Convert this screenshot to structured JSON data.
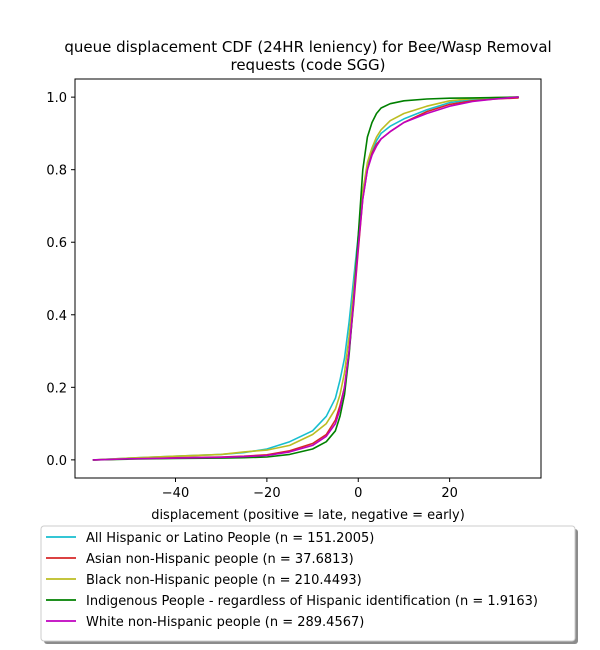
{
  "chart_data": {
    "type": "line",
    "title_lines": [
      "queue displacement CDF (24HR leniency) for Bee/Wasp Removal",
      "requests (code SGG)"
    ],
    "xlabel": "displacement (positive = late, negative = early)",
    "ylabel": "",
    "xlim": [
      -62,
      40
    ],
    "ylim": [
      -0.05,
      1.05
    ],
    "xticks": [
      -40,
      -20,
      0,
      20
    ],
    "xtick_labels": [
      "−40",
      "−20",
      "0",
      "20"
    ],
    "yticks": [
      0.0,
      0.2,
      0.4,
      0.6,
      0.8,
      1.0
    ],
    "ytick_labels": [
      "0.0",
      "0.2",
      "0.4",
      "0.6",
      "0.8",
      "1.0"
    ],
    "grid": false,
    "legend_position": "below plot",
    "series": [
      {
        "name": "All Hispanic or Latino People (n = 151.2005)",
        "color": "#17becf",
        "x": [
          -58,
          -50,
          -40,
          -30,
          -25,
          -20,
          -15,
          -10,
          -7,
          -5,
          -4,
          -3,
          -2,
          -1,
          0,
          1,
          2,
          3,
          4,
          5,
          7,
          10,
          15,
          20,
          25,
          30,
          35
        ],
        "y": [
          0.0,
          0.005,
          0.01,
          0.015,
          0.02,
          0.03,
          0.05,
          0.08,
          0.12,
          0.17,
          0.22,
          0.28,
          0.38,
          0.5,
          0.62,
          0.74,
          0.81,
          0.85,
          0.88,
          0.9,
          0.92,
          0.94,
          0.965,
          0.985,
          0.993,
          0.997,
          1.0
        ]
      },
      {
        "name": "Asian non-Hispanic people (n = 37.6813)",
        "color": "#d62728",
        "x": [
          -58,
          -50,
          -40,
          -30,
          -25,
          -20,
          -15,
          -10,
          -7,
          -5,
          -4,
          -3,
          -2,
          -1,
          0,
          1,
          2,
          3,
          4,
          5,
          7,
          10,
          15,
          20,
          25,
          30,
          35
        ],
        "y": [
          0.0,
          0.003,
          0.006,
          0.008,
          0.01,
          0.014,
          0.025,
          0.045,
          0.07,
          0.11,
          0.15,
          0.2,
          0.3,
          0.43,
          0.58,
          0.72,
          0.8,
          0.845,
          0.87,
          0.885,
          0.905,
          0.93,
          0.96,
          0.98,
          0.99,
          0.995,
          0.998
        ]
      },
      {
        "name": "Black non-Hispanic people (n = 210.4493)",
        "color": "#bcbd22",
        "x": [
          -58,
          -50,
          -40,
          -30,
          -25,
          -20,
          -15,
          -10,
          -7,
          -5,
          -4,
          -3,
          -2,
          -1,
          0,
          1,
          2,
          3,
          4,
          5,
          7,
          10,
          15,
          20,
          25,
          30,
          35
        ],
        "y": [
          0.0,
          0.005,
          0.01,
          0.015,
          0.022,
          0.027,
          0.04,
          0.07,
          0.1,
          0.14,
          0.18,
          0.24,
          0.34,
          0.47,
          0.61,
          0.74,
          0.82,
          0.86,
          0.89,
          0.91,
          0.935,
          0.955,
          0.975,
          0.99,
          0.996,
          0.999,
          1.0
        ]
      },
      {
        "name": "Indigenous People - regardless of Hispanic identification (n = 1.9163)",
        "color": "#008000",
        "x": [
          -58,
          -50,
          -40,
          -30,
          -25,
          -20,
          -15,
          -10,
          -7,
          -5,
          -4,
          -3,
          -2,
          -1,
          0,
          1,
          2,
          3,
          4,
          5,
          7,
          10,
          15,
          20,
          25,
          30,
          35
        ],
        "y": [
          0.0,
          0.002,
          0.004,
          0.005,
          0.006,
          0.008,
          0.015,
          0.03,
          0.05,
          0.08,
          0.12,
          0.18,
          0.29,
          0.44,
          0.62,
          0.8,
          0.89,
          0.93,
          0.955,
          0.97,
          0.982,
          0.99,
          0.995,
          0.997,
          0.998,
          0.999,
          1.0
        ]
      },
      {
        "name": "White non-Hispanic people (n = 289.4567)",
        "color": "#bf00bf",
        "x": [
          -58,
          -50,
          -40,
          -30,
          -25,
          -20,
          -15,
          -10,
          -7,
          -5,
          -4,
          -3,
          -2,
          -1,
          0,
          1,
          2,
          3,
          4,
          5,
          7,
          10,
          15,
          20,
          25,
          30,
          35
        ],
        "y": [
          0.0,
          0.003,
          0.005,
          0.007,
          0.009,
          0.012,
          0.022,
          0.04,
          0.065,
          0.1,
          0.14,
          0.2,
          0.3,
          0.44,
          0.59,
          0.72,
          0.8,
          0.84,
          0.865,
          0.885,
          0.905,
          0.93,
          0.955,
          0.975,
          0.988,
          0.995,
          1.0
        ]
      }
    ]
  }
}
